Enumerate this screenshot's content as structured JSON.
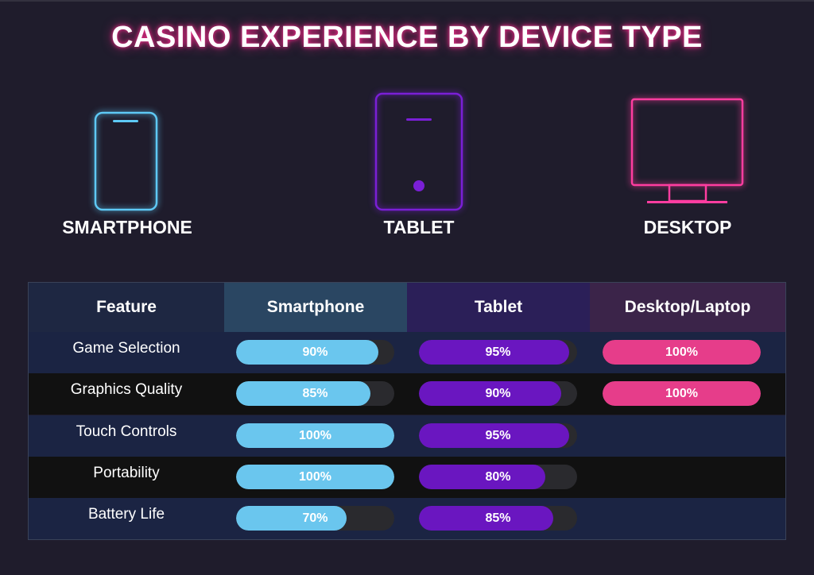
{
  "title": "CASINO EXPERIENCE BY DEVICE TYPE",
  "devices": [
    {
      "name": "SMARTPHONE",
      "icon": "smartphone-icon",
      "color": "#5ec9f5"
    },
    {
      "name": "TABLET",
      "icon": "tablet-icon",
      "color": "#7a1fd6"
    },
    {
      "name": "DESKTOP",
      "icon": "desktop-icon",
      "color": "#ff3da0"
    }
  ],
  "table": {
    "headers": [
      "Feature",
      "Smartphone",
      "Tablet",
      "Desktop/Laptop"
    ],
    "header_colors": [
      "#1e2742",
      "#2a4662",
      "#2b1f58",
      "#3b2449"
    ],
    "row_colors": [
      "#1b2443",
      "#111111"
    ]
  },
  "chart_data": {
    "type": "table",
    "title": "CASINO EXPERIENCE BY DEVICE TYPE",
    "categories": [
      "Game Selection",
      "Graphics Quality",
      "Touch Controls",
      "Portability",
      "Battery Life"
    ],
    "series": [
      {
        "name": "Smartphone",
        "color": "#6ac6ee",
        "values": [
          90,
          85,
          100,
          100,
          70
        ]
      },
      {
        "name": "Tablet",
        "color": "#6a16c0",
        "values": [
          95,
          90,
          95,
          80,
          85
        ]
      },
      {
        "name": "Desktop/Laptop",
        "color": "#e63d8a",
        "values": [
          100,
          100,
          null,
          null,
          null
        ]
      }
    ],
    "unit": "%",
    "ylim": [
      0,
      100
    ]
  }
}
